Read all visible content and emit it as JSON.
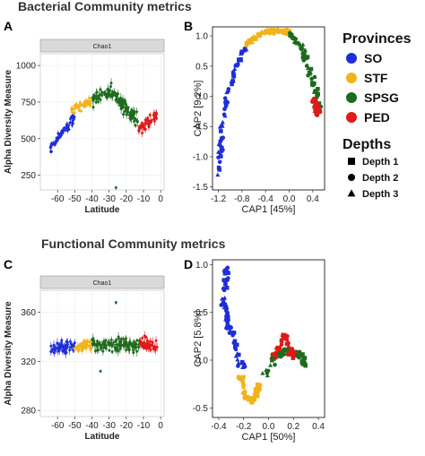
{
  "sections": {
    "top": "Bacterial Community metrics",
    "bottom": "Functional Community metrics"
  },
  "legend": {
    "provinces_title": "Provinces",
    "provinces": [
      {
        "label": "SO",
        "color": "#1f2fd6"
      },
      {
        "label": "STF",
        "color": "#f2b21b"
      },
      {
        "label": "SPSG",
        "color": "#1e6b1e"
      },
      {
        "label": "PED",
        "color": "#e01919"
      }
    ],
    "depths_title": "Depths",
    "depths": [
      {
        "label": "Depth 1",
        "shape": "square"
      },
      {
        "label": "Depth 2",
        "shape": "circle"
      },
      {
        "label": "Depth 3",
        "shape": "triangle"
      }
    ]
  },
  "chart_data": [
    {
      "panel": "A",
      "type": "scatter",
      "strip": "Chao1",
      "xlabel": "Latitude",
      "ylabel": "Alpha Diversity Measure",
      "xlim": [
        -70,
        2
      ],
      "ylim": [
        150,
        1080
      ],
      "xticks": [
        -60,
        -50,
        -40,
        -30,
        -20,
        -10,
        0
      ],
      "xtick_labels": [
        "-60",
        "-50",
        "-40",
        "-30",
        "-20",
        "-10",
        "0"
      ],
      "yticks": [
        250,
        500,
        750,
        1000
      ],
      "ytick_labels": [
        "250",
        "500",
        "750",
        "1000"
      ],
      "series": [
        {
          "name": "SO",
          "lat_range": [
            -64,
            -50
          ],
          "trend": [
            [
              -64,
              440
            ],
            [
              -50,
              640
            ]
          ],
          "spread": 45
        },
        {
          "name": "STF",
          "lat_range": [
            -52,
            -40
          ],
          "trend": [
            [
              -52,
              690
            ],
            [
              -40,
              760
            ]
          ],
          "spread": 45
        },
        {
          "name": "SPSG",
          "lat_range": [
            -40,
            -13
          ],
          "trend": [
            [
              -40,
              770
            ],
            [
              -30,
              840
            ],
            [
              -20,
              700
            ],
            [
              -13,
              620
            ]
          ],
          "spread": 70
        },
        {
          "name": "PED",
          "lat_range": [
            -13,
            -2
          ],
          "trend": [
            [
              -13,
              560
            ],
            [
              -2,
              650
            ]
          ],
          "spread": 60
        }
      ],
      "outliers": [
        {
          "x": -26,
          "y": 165
        }
      ]
    },
    {
      "panel": "B",
      "type": "scatter",
      "xlabel": "CAP1   [45%]",
      "ylabel": "CAP2   [9.2%]",
      "xlim": [
        -1.3,
        0.6
      ],
      "ylim": [
        -1.55,
        1.15
      ],
      "xticks": [
        -1.2,
        -0.8,
        -0.4,
        0.0,
        0.4
      ],
      "xtick_labels": [
        "-1.2",
        "-0.8",
        "-0.4",
        "0.0",
        "0.4"
      ],
      "yticks": [
        -1.5,
        -1.0,
        -0.5,
        0.0,
        0.5,
        1.0
      ],
      "ytick_labels": [
        "-1.5",
        "-1.0",
        "-0.5",
        "0.0",
        "0.5",
        "1.0"
      ],
      "series": [
        {
          "name": "SO",
          "path": [
            [
              -1.18,
              -1.3
            ],
            [
              -1.16,
              -0.6
            ],
            [
              -1.05,
              0.0
            ],
            [
              -0.92,
              0.45
            ],
            [
              -0.75,
              0.8
            ]
          ],
          "spread": 0.05
        },
        {
          "name": "STF",
          "path": [
            [
              -0.75,
              0.85
            ],
            [
              -0.55,
              1.0
            ],
            [
              -0.35,
              1.08
            ],
            [
              -0.15,
              1.08
            ],
            [
              0.0,
              1.05
            ]
          ],
          "spread": 0.05
        },
        {
          "name": "SPSG",
          "path": [
            [
              0.0,
              1.05
            ],
            [
              0.18,
              0.85
            ],
            [
              0.32,
              0.5
            ],
            [
              0.45,
              0.1
            ],
            [
              0.52,
              -0.25
            ]
          ],
          "spread": 0.06
        },
        {
          "name": "PED",
          "path": [
            [
              0.42,
              -0.05
            ],
            [
              0.5,
              -0.3
            ]
          ],
          "spread": 0.05
        }
      ]
    },
    {
      "panel": "C",
      "type": "scatter",
      "strip": "Chao1",
      "xlabel": "Latitude",
      "ylabel": "Alpha Diversity Measure",
      "xlim": [
        -70,
        2
      ],
      "ylim": [
        275,
        378
      ],
      "xticks": [
        -60,
        -50,
        -40,
        -30,
        -20,
        -10,
        0
      ],
      "xtick_labels": [
        "-60",
        "-50",
        "-40",
        "-30",
        "-20",
        "-10",
        "0"
      ],
      "yticks": [
        280,
        320,
        360
      ],
      "ytick_labels": [
        "280",
        "320",
        "360"
      ],
      "series": [
        {
          "name": "SO",
          "lat_range": [
            -64,
            -50
          ],
          "trend": [
            [
              -64,
              330
            ],
            [
              -50,
              332
            ]
          ],
          "spread": 8
        },
        {
          "name": "STF",
          "lat_range": [
            -50,
            -40
          ],
          "trend": [
            [
              -50,
              332
            ],
            [
              -40,
              333
            ]
          ],
          "spread": 8
        },
        {
          "name": "SPSG",
          "lat_range": [
            -40,
            -12
          ],
          "trend": [
            [
              -40,
              333
            ],
            [
              -12,
              334
            ]
          ],
          "spread": 8
        },
        {
          "name": "PED",
          "lat_range": [
            -12,
            -2
          ],
          "trend": [
            [
              -12,
              334
            ],
            [
              -2,
              332
            ]
          ],
          "spread": 8
        }
      ],
      "outliers": [
        {
          "x": -26,
          "y": 368
        },
        {
          "x": -35,
          "y": 312
        }
      ]
    },
    {
      "panel": "D",
      "type": "scatter",
      "xlabel": "CAP1   [50%]",
      "ylabel": "CAP2   [5.8%]",
      "xlim": [
        -0.45,
        0.45
      ],
      "ylim": [
        -0.6,
        1.05
      ],
      "xticks": [
        -0.4,
        -0.2,
        0.0,
        0.2,
        0.4
      ],
      "xtick_labels": [
        "-0.4",
        "-0.2",
        "0.0",
        "0.2",
        "0.4"
      ],
      "yticks": [
        -0.5,
        0.0,
        0.5,
        1.0
      ],
      "ytick_labels": [
        "-0.5",
        "0.0",
        "0.5",
        "1.0"
      ],
      "series": [
        {
          "name": "SO",
          "path": [
            [
              -0.33,
              0.98
            ],
            [
              -0.36,
              0.6
            ],
            [
              -0.32,
              0.35
            ],
            [
              -0.26,
              0.1
            ],
            [
              -0.2,
              -0.1
            ]
          ],
          "spread": 0.035
        },
        {
          "name": "STF",
          "path": [
            [
              -0.23,
              -0.15
            ],
            [
              -0.18,
              -0.4
            ],
            [
              -0.12,
              -0.42
            ],
            [
              -0.07,
              -0.25
            ]
          ],
          "spread": 0.03
        },
        {
          "name": "SPSG",
          "path": [
            [
              -0.05,
              -0.2
            ],
            [
              0.05,
              0.05
            ],
            [
              0.15,
              0.1
            ],
            [
              0.25,
              0.05
            ],
            [
              0.3,
              -0.05
            ]
          ],
          "spread": 0.045
        },
        {
          "name": "PED",
          "path": [
            [
              0.05,
              0.05
            ],
            [
              0.12,
              0.25
            ],
            [
              0.2,
              0.15
            ],
            [
              0.17,
              -0.05
            ]
          ],
          "spread": 0.04
        }
      ]
    }
  ]
}
